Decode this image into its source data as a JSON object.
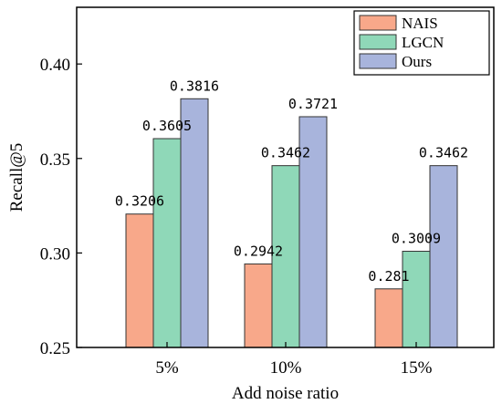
{
  "chart_data": {
    "type": "bar",
    "categories": [
      "5%",
      "10%",
      "15%"
    ],
    "series": [
      {
        "name": "NAIS",
        "color": "#f8a88a",
        "values": [
          0.3206,
          0.2942,
          0.281
        ],
        "labels": [
          "0.3206",
          "0.2942",
          "0.281"
        ]
      },
      {
        "name": "LGCN",
        "color": "#8fd8b8",
        "values": [
          0.3605,
          0.3462,
          0.3009
        ],
        "labels": [
          "0.3605",
          "0.3462",
          "0.3009"
        ]
      },
      {
        "name": "Ours",
        "color": "#a8b4dc",
        "values": [
          0.3816,
          0.3721,
          0.3462
        ],
        "labels": [
          "0.3816",
          "0.3721",
          "0.3462"
        ]
      }
    ],
    "xlabel": "Add noise ratio",
    "ylabel": "Recall@5",
    "ylim": [
      0.25,
      0.43
    ],
    "yticks": [
      0.25,
      0.3,
      0.35,
      0.4
    ],
    "ytick_labels": [
      "0.25",
      "0.30",
      "0.35",
      "0.40"
    ],
    "legend_position": "top-right",
    "grid": false
  }
}
